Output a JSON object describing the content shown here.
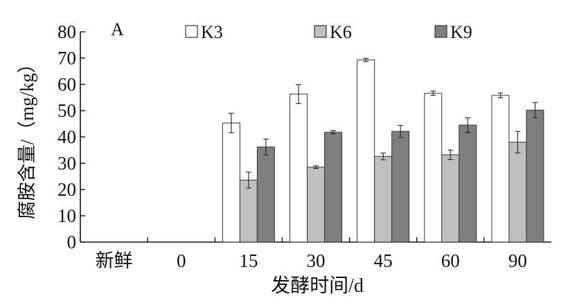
{
  "chart_data": {
    "type": "bar",
    "panel_label": "A",
    "categories": [
      "新鲜",
      "0",
      "15",
      "30",
      "45",
      "60",
      "90"
    ],
    "series": [
      {
        "name": "K3",
        "color": "#ffffff",
        "values": [
          null,
          null,
          45.3,
          56.3,
          69.3,
          56.6,
          55.8
        ],
        "errors": [
          null,
          null,
          3.7,
          3.6,
          0.6,
          0.8,
          0.9
        ]
      },
      {
        "name": "K6",
        "color": "#bfbfbf",
        "values": [
          null,
          null,
          23.6,
          28.5,
          32.6,
          33.2,
          38.0
        ],
        "errors": [
          null,
          null,
          3.0,
          0.5,
          1.3,
          1.8,
          4.1
        ]
      },
      {
        "name": "K9",
        "color": "#7f7f7f",
        "values": [
          null,
          null,
          36.2,
          41.8,
          42.1,
          44.5,
          50.2
        ],
        "errors": [
          null,
          null,
          3.0,
          0.6,
          2.3,
          2.8,
          2.9
        ]
      }
    ],
    "xlabel": "发酵时间/d",
    "ylabel": "腐胺含量/（mg/kg）",
    "ylim": [
      0,
      80
    ],
    "yticks": [
      "0",
      "10",
      "20",
      "30",
      "40",
      "50",
      "60",
      "70",
      "80"
    ],
    "grid": false,
    "legend_position": "top"
  }
}
